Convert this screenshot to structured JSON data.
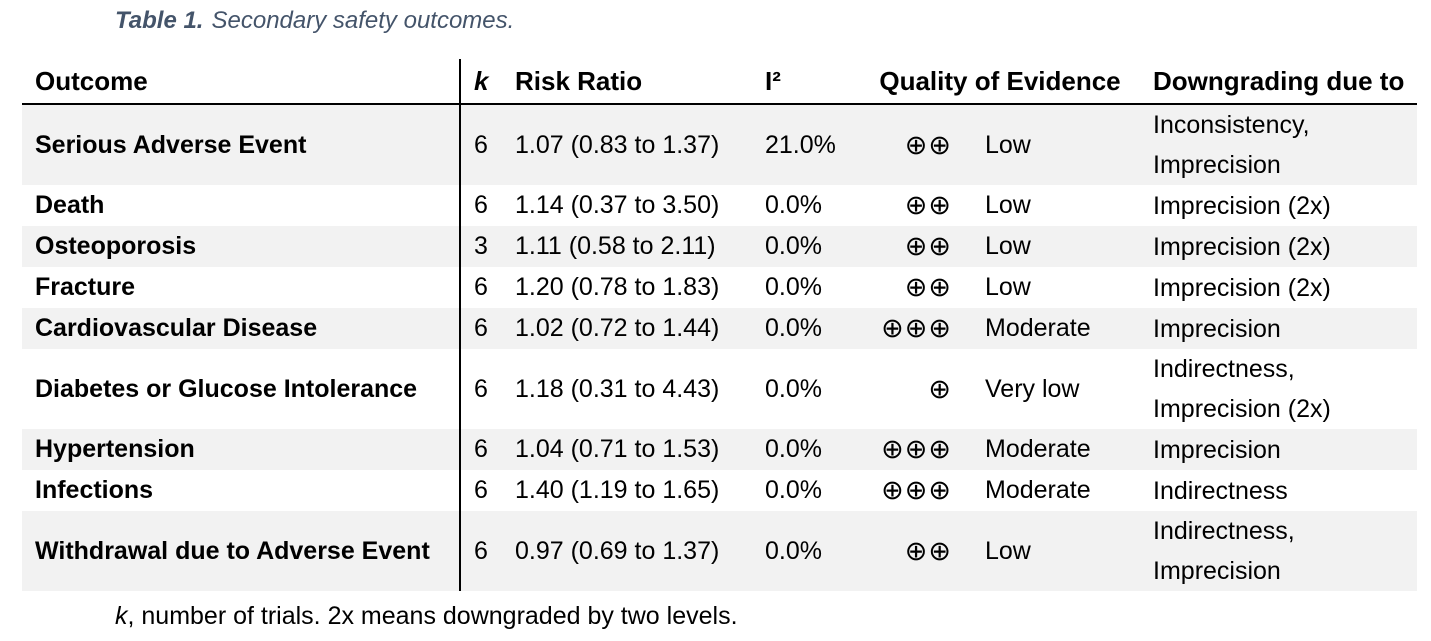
{
  "colors": {
    "caption_text": "#44546A",
    "row_stripe": "#F2F2F2",
    "body_text": "#000000",
    "border": "#000000"
  },
  "caption": {
    "label": "Table 1.",
    "text": "Secondary safety outcomes."
  },
  "table": {
    "columns": {
      "outcome": "Outcome",
      "k": "k",
      "risk_ratio": "Risk Ratio",
      "i2": "I²",
      "quality": "Quality of Evidence",
      "downgrading": "Downgrading due to"
    },
    "rows": [
      {
        "outcome": "Serious Adverse Event",
        "k": "6",
        "risk_ratio": "1.07 (0.83 to 1.37)",
        "i2": "21.0%",
        "evidence_symbols": "⊕⊕",
        "evidence_label": "Low",
        "downgrading1": "Inconsistency,",
        "downgrading2": "Imprecision"
      },
      {
        "outcome": "Death",
        "k": "6",
        "risk_ratio": "1.14 (0.37 to 3.50)",
        "i2": "0.0%",
        "evidence_symbols": "⊕⊕",
        "evidence_label": "Low",
        "downgrading1": "Imprecision (2x)",
        "downgrading2": ""
      },
      {
        "outcome": "Osteoporosis",
        "k": "3",
        "risk_ratio": "1.11 (0.58 to 2.11)",
        "i2": "0.0%",
        "evidence_symbols": "⊕⊕",
        "evidence_label": "Low",
        "downgrading1": "Imprecision (2x)",
        "downgrading2": ""
      },
      {
        "outcome": "Fracture",
        "k": "6",
        "risk_ratio": "1.20 (0.78 to 1.83)",
        "i2": "0.0%",
        "evidence_symbols": "⊕⊕",
        "evidence_label": "Low",
        "downgrading1": "Imprecision (2x)",
        "downgrading2": ""
      },
      {
        "outcome": "Cardiovascular Disease",
        "k": "6",
        "risk_ratio": "1.02 (0.72 to 1.44)",
        "i2": "0.0%",
        "evidence_symbols": "⊕⊕⊕",
        "evidence_label": "Moderate",
        "downgrading1": "Imprecision",
        "downgrading2": ""
      },
      {
        "outcome": "Diabetes or Glucose Intolerance",
        "k": "6",
        "risk_ratio": "1.18 (0.31 to 4.43)",
        "i2": "0.0%",
        "evidence_symbols": "⊕",
        "evidence_label": "Very low",
        "downgrading1": "Indirectness,",
        "downgrading2": "Imprecision (2x)"
      },
      {
        "outcome": "Hypertension",
        "k": "6",
        "risk_ratio": "1.04 (0.71 to 1.53)",
        "i2": "0.0%",
        "evidence_symbols": "⊕⊕⊕",
        "evidence_label": "Moderate",
        "downgrading1": "Imprecision",
        "downgrading2": ""
      },
      {
        "outcome": "Infections",
        "k": "6",
        "risk_ratio": "1.40 (1.19 to 1.65)",
        "i2": "0.0%",
        "evidence_symbols": "⊕⊕⊕",
        "evidence_label": "Moderate",
        "downgrading1": "Indirectness",
        "downgrading2": ""
      },
      {
        "outcome": "Withdrawal due to Adverse Event",
        "k": "6",
        "risk_ratio": "0.97 (0.69 to 1.37)",
        "i2": "0.0%",
        "evidence_symbols": "⊕⊕",
        "evidence_label": "Low",
        "downgrading1": "Indirectness,",
        "downgrading2": "Imprecision"
      }
    ]
  },
  "footnote": {
    "k": "k",
    "rest": ", number of trials. 2x means downgraded by two levels."
  }
}
